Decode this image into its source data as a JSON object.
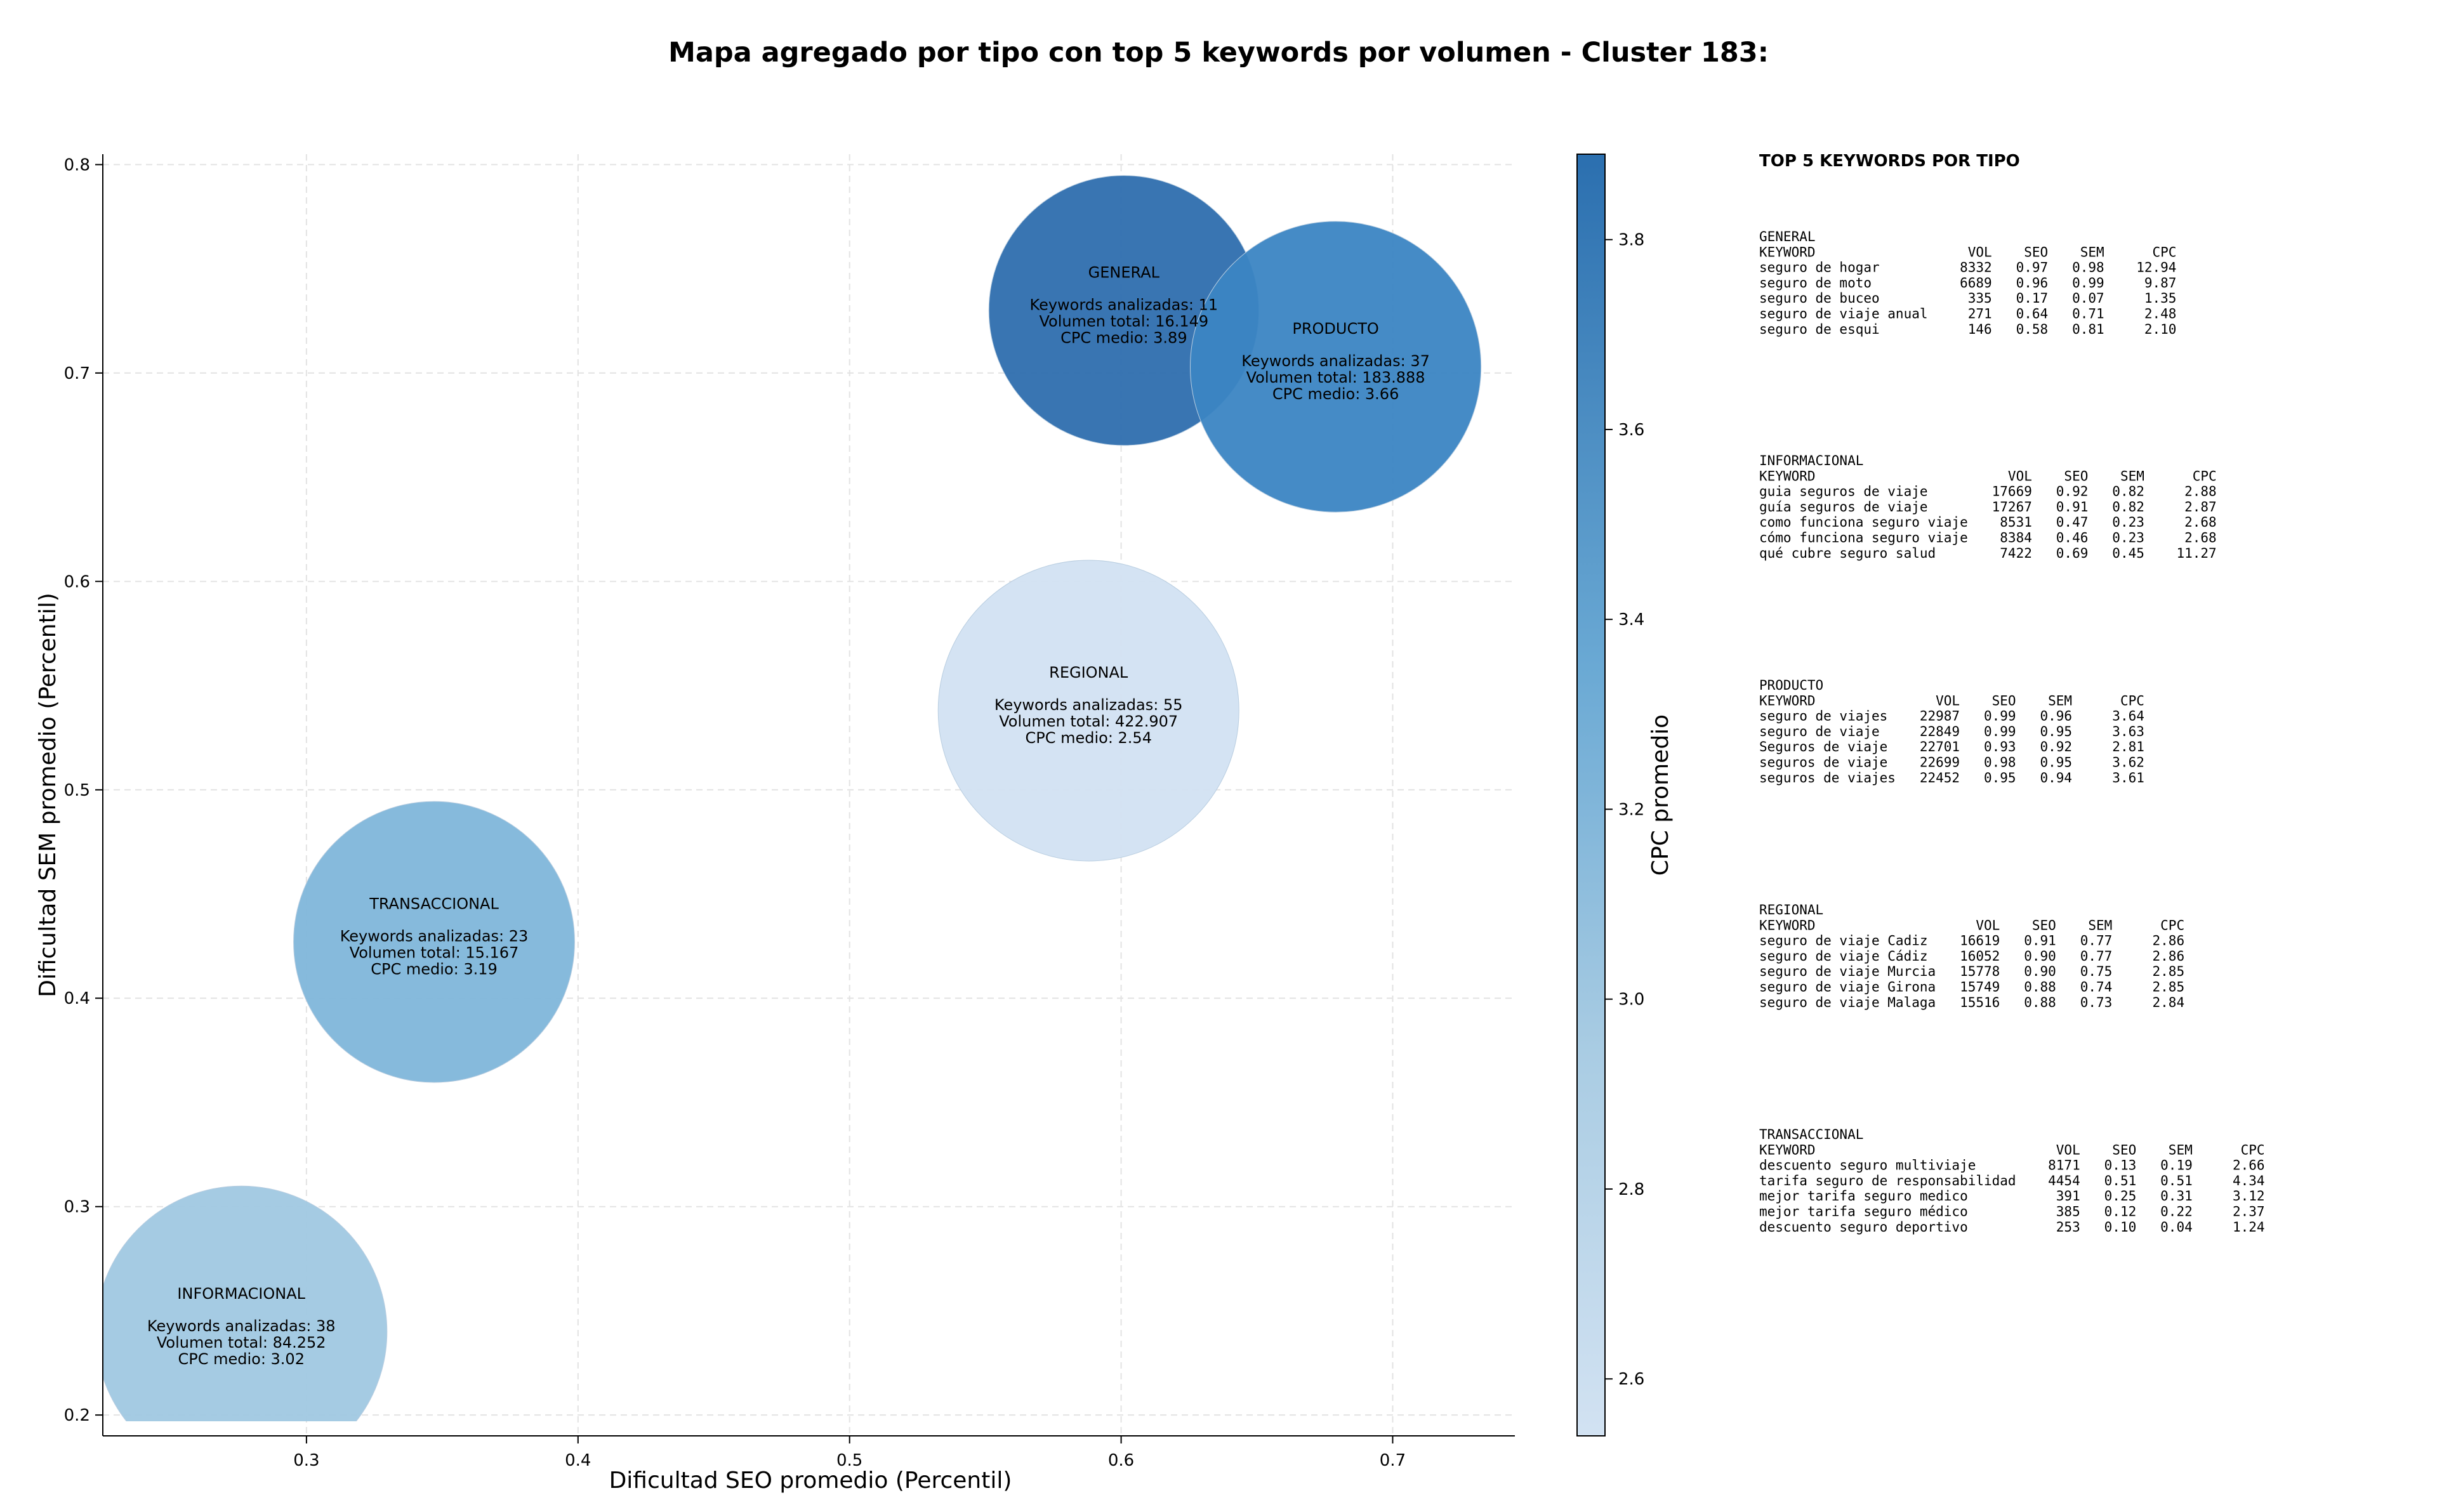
{
  "chart_data": {
    "type": "scatter",
    "title": "Mapa agregado por tipo con top 5 keywords por volumen - Cluster 183:",
    "xlabel": "Dificultad SEO promedio (Percentil)",
    "ylabel": "Dificultad SEM promedio (Percentil)",
    "xlim": [
      0.225,
      0.745
    ],
    "ylim": [
      0.19,
      0.805
    ],
    "xticks": [
      "0.3",
      "0.4",
      "0.5",
      "0.6",
      "0.7"
    ],
    "yticks": [
      "0.2",
      "0.3",
      "0.4",
      "0.5",
      "0.6",
      "0.7",
      "0.8"
    ],
    "grid": true,
    "colorbar": {
      "label": "CPC promedio",
      "range": [
        2.54,
        3.89
      ],
      "ticks": [
        "2.6",
        "2.8",
        "3.0",
        "3.2",
        "3.4",
        "3.6",
        "3.8"
      ],
      "color_low": "#d2e2f2",
      "color_high": "#2b6faf"
    },
    "points": [
      {
        "label": "GENERAL",
        "x": 0.601,
        "y": 0.73,
        "color": "#2e6eae",
        "keywords_label": "Keywords analizadas: 11",
        "volume_label": "Volumen total: 16.149",
        "cpc_label": "CPC medio: 3.89",
        "keywords": 11,
        "volume": 16149,
        "cpc": 3.89
      },
      {
        "label": "PRODUCTO",
        "x": 0.679,
        "y": 0.703,
        "color": "#3b85c3",
        "keywords_label": "Keywords analizadas: 37",
        "volume_label": "Volumen total: 183.888",
        "cpc_label": "CPC medio: 3.66",
        "keywords": 37,
        "volume": 183888,
        "cpc": 3.66
      },
      {
        "label": "REGIONAL",
        "x": 0.588,
        "y": 0.538,
        "color": "#d2e2f2",
        "keywords_label": "Keywords analizadas: 55",
        "volume_label": "Volumen total: 422.907",
        "cpc_label": "CPC medio: 2.54",
        "keywords": 55,
        "volume": 422907,
        "cpc": 2.54
      },
      {
        "label": "TRANSACCIONAL",
        "x": 0.347,
        "y": 0.427,
        "color": "#7fb6da",
        "keywords_label": "Keywords analizadas: 23",
        "volume_label": "Volumen total: 15.167",
        "cpc_label": "CPC medio: 3.19",
        "keywords": 23,
        "volume": 15167,
        "cpc": 3.19
      },
      {
        "label": "INFORMACIONAL",
        "x": 0.276,
        "y": 0.24,
        "color": "#a0c8e1",
        "keywords_label": "Keywords analizadas: 38",
        "volume_label": "Volumen total: 84.252",
        "cpc_label": "CPC medio: 3.02",
        "keywords": 38,
        "volume": 84252,
        "cpc": 3.02
      }
    ]
  },
  "side_panel": {
    "title": "TOP 5 KEYWORDS POR TIPO",
    "groups": [
      {
        "name": "GENERAL",
        "header": "KEYWORD                   VOL    SEO    SEM      CPC",
        "rows": [
          "seguro de hogar          8332   0.97   0.98    12.94",
          "seguro de moto           6689   0.96   0.99     9.87",
          "seguro de buceo           335   0.17   0.07     1.35",
          "seguro de viaje anual     271   0.64   0.71     2.48",
          "seguro de esqui           146   0.58   0.81     2.10"
        ]
      },
      {
        "name": "INFORMACIONAL",
        "header": "KEYWORD                        VOL    SEO    SEM      CPC",
        "rows": [
          "guia seguros de viaje        17669   0.92   0.82     2.88",
          "guía seguros de viaje        17267   0.91   0.82     2.87",
          "como funciona seguro viaje    8531   0.47   0.23     2.68",
          "cómo funciona seguro viaje    8384   0.46   0.23     2.68",
          "qué cubre seguro salud        7422   0.69   0.45    11.27"
        ]
      },
      {
        "name": "PRODUCTO",
        "header": "KEYWORD               VOL    SEO    SEM      CPC",
        "rows": [
          "seguro de viajes    22987   0.99   0.96     3.64",
          "seguro de viaje     22849   0.99   0.95     3.63",
          "Seguros de viaje    22701   0.93   0.92     2.81",
          "seguros de viaje    22699   0.98   0.95     3.62",
          "seguros de viajes   22452   0.95   0.94     3.61"
        ]
      },
      {
        "name": "REGIONAL",
        "header": "KEYWORD                    VOL    SEO    SEM      CPC",
        "rows": [
          "seguro de viaje Cadiz    16619   0.91   0.77     2.86",
          "seguro de viaje Cádiz    16052   0.90   0.77     2.86",
          "seguro de viaje Murcia   15778   0.90   0.75     2.85",
          "seguro de viaje Girona   15749   0.88   0.74     2.85",
          "seguro de viaje Malaga   15516   0.88   0.73     2.84"
        ]
      },
      {
        "name": "TRANSACCIONAL",
        "header": "KEYWORD                              VOL    SEO    SEM      CPC",
        "rows": [
          "descuento seguro multiviaje         8171   0.13   0.19     2.66",
          "tarifa seguro de responsabilidad    4454   0.51   0.51     4.34",
          "mejor tarifa seguro medico           391   0.25   0.31     3.12",
          "mejor tarifa seguro médico           385   0.12   0.22     2.37",
          "descuento seguro deportivo           253   0.10   0.04     1.24"
        ]
      }
    ]
  }
}
